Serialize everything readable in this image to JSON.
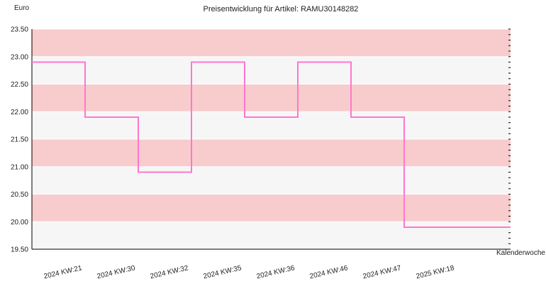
{
  "chart_data": {
    "type": "line",
    "step": true,
    "title": "Preisentwicklung für Artikel: RAMU30148282",
    "ylabel": "Euro",
    "xlabel": "Kalenderwoche",
    "ylim": [
      19.5,
      23.5
    ],
    "yticks": [
      "19.50",
      "20.00",
      "20.50",
      "21.00",
      "21.50",
      "22.00",
      "22.50",
      "23.00",
      "23.50"
    ],
    "categories": [
      "2024 KW:21",
      "2024 KW:30",
      "2024 KW:32",
      "2024 KW:35",
      "2024 KW:36",
      "2024 KW:46",
      "2024 KW:47",
      "2025 KW:18"
    ],
    "series": [
      {
        "values": [
          22.9,
          21.9,
          20.9,
          22.9,
          21.9,
          22.9,
          21.9,
          19.9
        ]
      }
    ],
    "grid": true,
    "colors": {
      "line": "#ff77cc",
      "band_a": "#f8cccc",
      "band_b": "#f6f6f6",
      "grid": "#ffffff",
      "axis": "#000000"
    }
  }
}
